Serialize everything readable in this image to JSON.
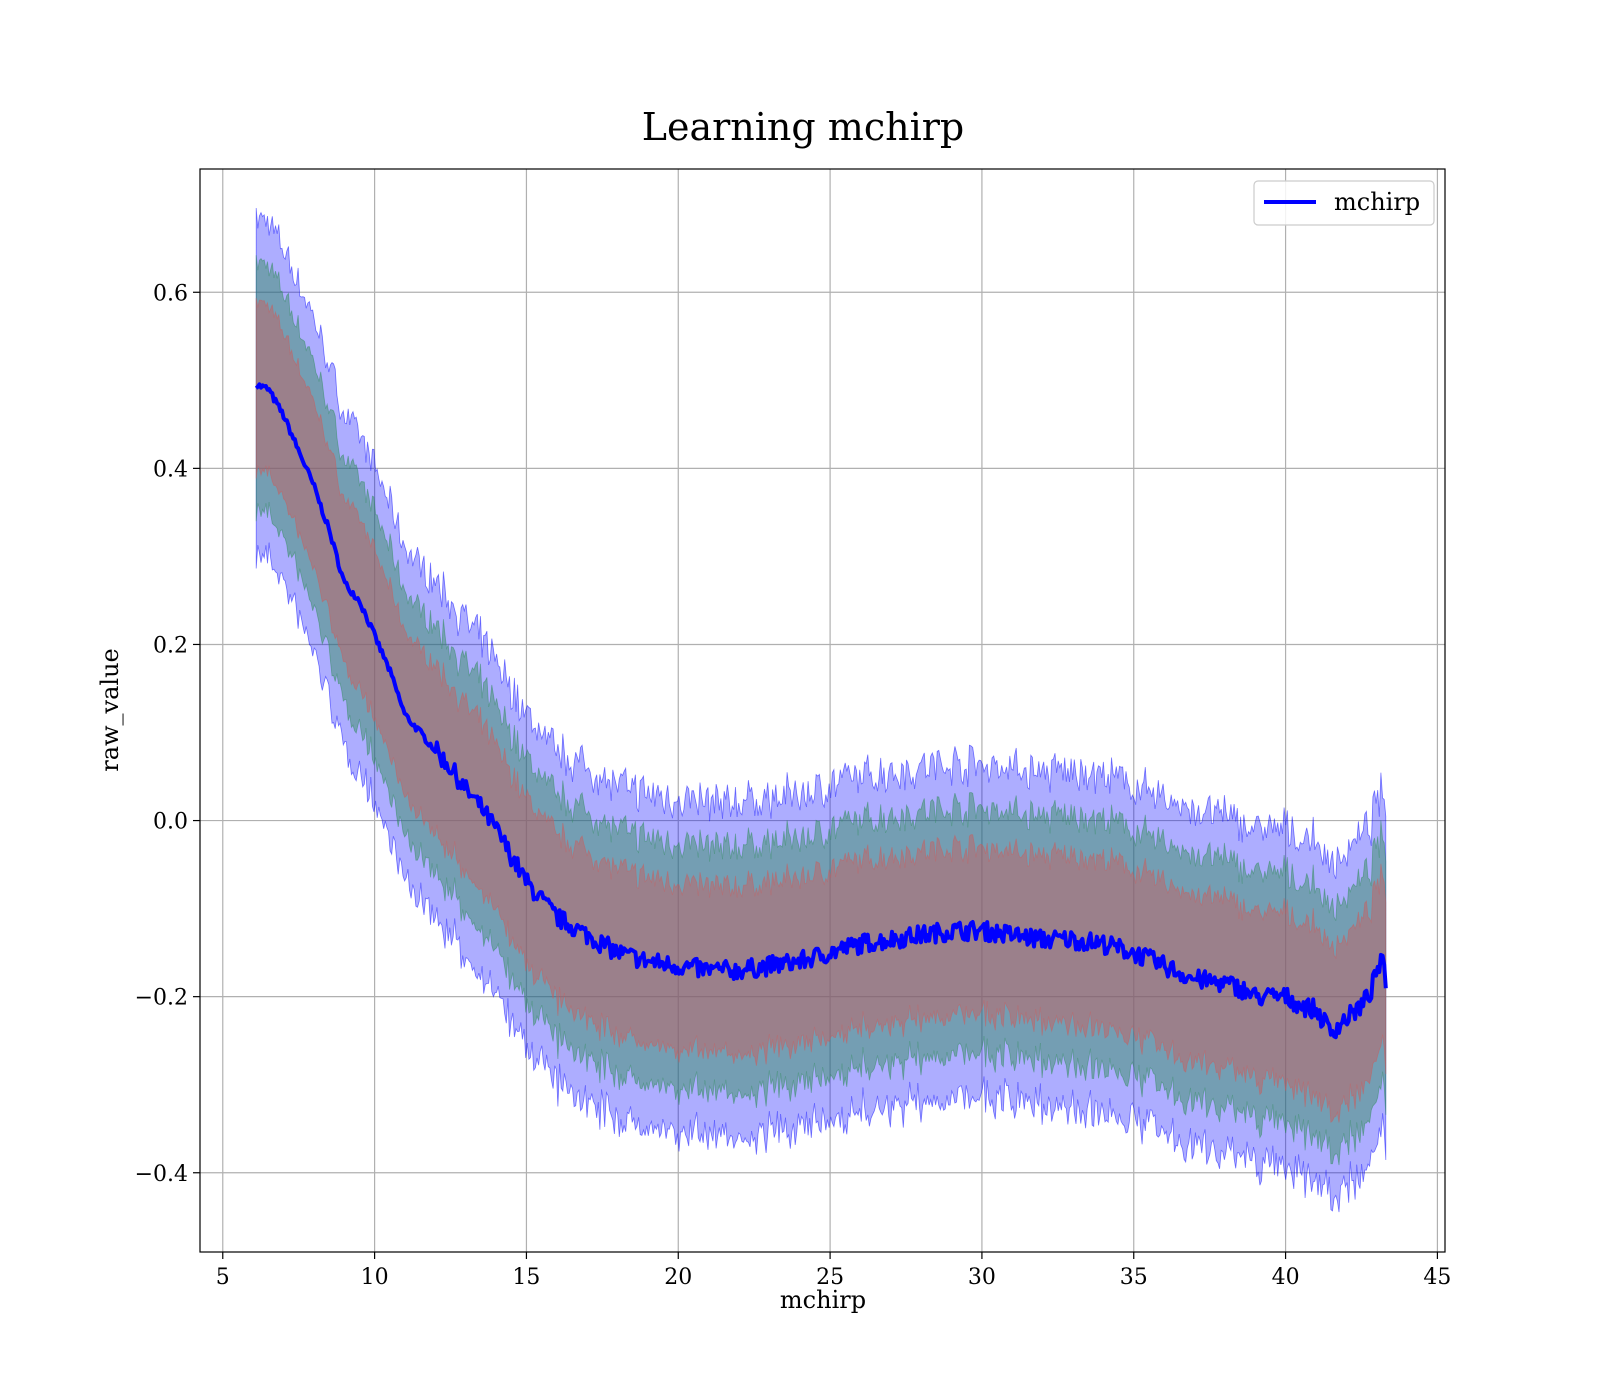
{
  "chart_data": {
    "type": "line",
    "title": "Learning mchirp",
    "xlabel": "mchirp",
    "ylabel": "raw_value",
    "xlim": [
      4.25,
      45.25
    ],
    "ylim": [
      -0.49,
      0.74
    ],
    "xticks": [
      5,
      10,
      15,
      20,
      25,
      30,
      35,
      40,
      45
    ],
    "xtick_labels": [
      "5",
      "10",
      "15",
      "20",
      "25",
      "30",
      "35",
      "40",
      "45"
    ],
    "yticks": [
      -0.4,
      -0.2,
      0.0,
      0.2,
      0.4,
      0.6
    ],
    "ytick_labels": [
      "−0.4",
      "−0.2",
      "0.0",
      "0.2",
      "0.4",
      "0.6"
    ],
    "grid": true,
    "legend": {
      "placement": "top-right",
      "entries": [
        "mchirp"
      ]
    },
    "bands": [
      {
        "level": "3 sigma",
        "color": "#0000ff",
        "half_width": 0.19
      },
      {
        "level": "2 sigma",
        "color": "#2e8b57",
        "half_width": 0.14
      },
      {
        "level": "1 sigma",
        "color": "#cd5c5c",
        "half_width": 0.095
      }
    ],
    "series": [
      {
        "name": "mchirp",
        "color": "#0000ff",
        "x": [
          6.1,
          6.5,
          7.0,
          7.5,
          8.0,
          8.5,
          9.0,
          9.5,
          10.0,
          10.5,
          11.0,
          11.5,
          12.0,
          12.5,
          13.0,
          13.5,
          14.0,
          14.5,
          15.0,
          15.5,
          16.0,
          16.5,
          17.0,
          17.5,
          18.0,
          19.0,
          20.0,
          21.0,
          22.0,
          23.0,
          24.0,
          25.0,
          26.0,
          27.0,
          28.0,
          29.0,
          30.0,
          31.0,
          32.0,
          33.0,
          34.0,
          35.0,
          36.0,
          37.0,
          38.0,
          38.5,
          39.0,
          39.5,
          40.0,
          40.5,
          41.0,
          41.5,
          42.0,
          42.5,
          42.8,
          43.0,
          43.2,
          43.3
        ],
        "y": [
          0.495,
          0.49,
          0.46,
          0.42,
          0.38,
          0.33,
          0.27,
          0.25,
          0.21,
          0.17,
          0.12,
          0.1,
          0.08,
          0.06,
          0.035,
          0.015,
          -0.01,
          -0.04,
          -0.07,
          -0.09,
          -0.11,
          -0.12,
          -0.13,
          -0.14,
          -0.15,
          -0.16,
          -0.165,
          -0.17,
          -0.17,
          -0.165,
          -0.16,
          -0.15,
          -0.14,
          -0.135,
          -0.13,
          -0.125,
          -0.125,
          -0.13,
          -0.135,
          -0.135,
          -0.14,
          -0.15,
          -0.165,
          -0.18,
          -0.185,
          -0.19,
          -0.2,
          -0.2,
          -0.2,
          -0.21,
          -0.215,
          -0.24,
          -0.225,
          -0.21,
          -0.195,
          -0.17,
          -0.16,
          -0.19
        ]
      }
    ]
  }
}
